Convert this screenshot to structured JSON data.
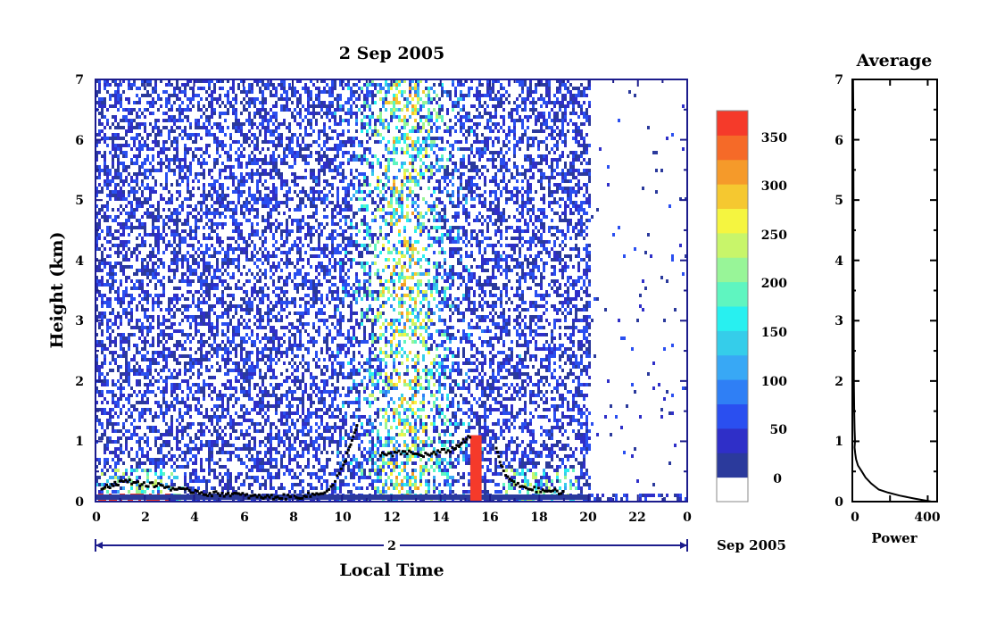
{
  "chart_data": [
    {
      "type": "heatmap",
      "title": "2 Sep 2005",
      "xlabel": "Local Time",
      "ylabel": "Height (km)",
      "xlim": [
        0,
        24
      ],
      "ylim": [
        0,
        7
      ],
      "x_ticks": [
        "0",
        "2",
        "4",
        "6",
        "8",
        "10",
        "12",
        "14",
        "16",
        "18",
        "20",
        "22",
        "0"
      ],
      "y_ticks": [
        "0",
        "1",
        "2",
        "3",
        "4",
        "5",
        "6",
        "7"
      ],
      "date_day": "2",
      "date_month_year": "Sep 2005",
      "colorbar": {
        "ticks": [
          "0",
          "50",
          "100",
          "150",
          "200",
          "250",
          "300",
          "350"
        ],
        "colors": [
          "#ffffff",
          "#2b3a9c",
          "#2f2fc8",
          "#2a4ff0",
          "#2f7ff5",
          "#38a8f5",
          "#35cdea",
          "#28f0f0",
          "#5ff5c0",
          "#98f598",
          "#c8f56a",
          "#f5f540",
          "#f5c830",
          "#f59a2a",
          "#f56a28",
          "#f53a2a"
        ]
      },
      "features": {
        "boundary_layer_top_km": [
          [
            0.2,
            0.25
          ],
          [
            0.6,
            0.3
          ],
          [
            1.0,
            0.35
          ],
          [
            1.5,
            0.35
          ],
          [
            2.0,
            0.3
          ],
          [
            2.5,
            0.3
          ],
          [
            3.0,
            0.25
          ],
          [
            3.5,
            0.2
          ],
          [
            4.0,
            0.2
          ],
          [
            4.5,
            0.15
          ],
          [
            5.0,
            0.15
          ],
          [
            5.5,
            0.15
          ],
          [
            6.0,
            0.12
          ],
          [
            6.5,
            0.1
          ],
          [
            7.0,
            0.1
          ],
          [
            7.5,
            0.1
          ],
          [
            8.0,
            0.1
          ],
          [
            8.5,
            0.12
          ],
          [
            9.0,
            0.15
          ],
          [
            9.5,
            0.25
          ],
          [
            10.0,
            0.6
          ],
          [
            10.3,
            1.0
          ],
          [
            10.6,
            1.3
          ],
          [
            11.5,
            0.8
          ],
          [
            12.0,
            0.8
          ],
          [
            12.5,
            0.85
          ],
          [
            13.0,
            0.8
          ],
          [
            13.5,
            0.8
          ],
          [
            14.0,
            0.85
          ],
          [
            14.5,
            0.9
          ],
          [
            14.8,
            1.0
          ],
          [
            15.2,
            1.1
          ],
          [
            16.2,
            0.9
          ],
          [
            16.5,
            0.5
          ],
          [
            17.0,
            0.3
          ],
          [
            17.5,
            0.25
          ],
          [
            18.0,
            0.2
          ],
          [
            18.5,
            0.2
          ],
          [
            19.0,
            0.15
          ]
        ]
      }
    },
    {
      "type": "line",
      "title": "Average",
      "xlabel": "Power",
      "ylabel": "",
      "xlim": [
        0,
        450
      ],
      "ylim": [
        0,
        7
      ],
      "x_ticks": [
        "0",
        "400"
      ],
      "y_ticks": [
        "0",
        "1",
        "2",
        "3",
        "4",
        "5",
        "6",
        "7"
      ],
      "series": [
        {
          "x": [
            420,
            330,
            250,
            190,
            140,
            100,
            70,
            50,
            30,
            20,
            15,
            12,
            14,
            12,
            10,
            8,
            7,
            6,
            6,
            5,
            5,
            4
          ],
          "y": [
            0.0,
            0.05,
            0.1,
            0.15,
            0.2,
            0.3,
            0.4,
            0.5,
            0.6,
            0.7,
            0.8,
            0.9,
            1.0,
            1.2,
            1.5,
            2.0,
            3.0,
            4.0,
            5.0,
            6.0,
            6.5,
            7.0
          ]
        }
      ]
    }
  ]
}
